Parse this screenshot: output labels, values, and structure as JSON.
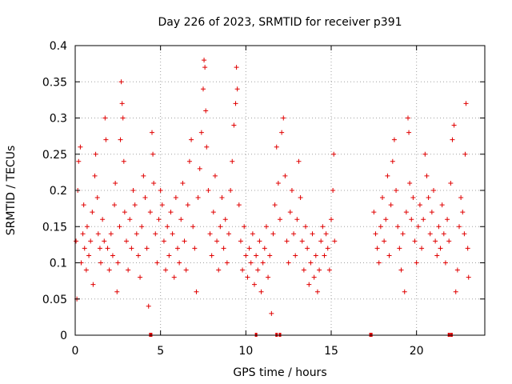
{
  "chart_data": {
    "type": "scatter",
    "title": "Day 226 of 2023, SRMTID for receiver p391",
    "xlabel": "GPS time / hours",
    "ylabel": "SRMTID / TECUs",
    "xlim": [
      0,
      24
    ],
    "ylim": [
      0,
      0.4
    ],
    "x_ticks": [
      0,
      5,
      10,
      15,
      20
    ],
    "x_tick_labels": [
      "0",
      "5",
      "10",
      "15",
      "20"
    ],
    "y_ticks": [
      0,
      0.05,
      0.1,
      0.15,
      0.2,
      0.25,
      0.3,
      0.35,
      0.4
    ],
    "y_tick_labels": [
      "0",
      "0.05",
      "0.1",
      "0.15",
      "0.2",
      "0.25",
      "0.3",
      "0.35",
      "0.4"
    ],
    "grid": true,
    "series": [
      {
        "name": "SRMTID",
        "color": "#e00000",
        "marker": "plus",
        "points": [
          [
            0.05,
            0.13
          ],
          [
            0.1,
            0.05
          ],
          [
            0.15,
            0.2
          ],
          [
            0.2,
            0.24
          ],
          [
            0.3,
            0.26
          ],
          [
            0.35,
            0.1
          ],
          [
            0.45,
            0.14
          ],
          [
            0.5,
            0.18
          ],
          [
            0.55,
            0.12
          ],
          [
            0.65,
            0.09
          ],
          [
            0.7,
            0.15
          ],
          [
            0.8,
            0.11
          ],
          [
            0.9,
            0.13
          ],
          [
            1.0,
            0.17
          ],
          [
            1.05,
            0.07
          ],
          [
            1.15,
            0.22
          ],
          [
            1.2,
            0.25
          ],
          [
            1.3,
            0.19
          ],
          [
            1.35,
            0.14
          ],
          [
            1.45,
            0.12
          ],
          [
            1.5,
            0.1
          ],
          [
            1.6,
            0.16
          ],
          [
            1.7,
            0.13
          ],
          [
            1.75,
            0.3
          ],
          [
            1.8,
            0.27
          ],
          [
            1.9,
            0.12
          ],
          [
            2.0,
            0.09
          ],
          [
            2.1,
            0.14
          ],
          [
            2.2,
            0.11
          ],
          [
            2.3,
            0.18
          ],
          [
            2.35,
            0.21
          ],
          [
            2.45,
            0.06
          ],
          [
            2.5,
            0.1
          ],
          [
            2.6,
            0.15
          ],
          [
            2.65,
            0.27
          ],
          [
            2.7,
            0.35
          ],
          [
            2.75,
            0.32
          ],
          [
            2.8,
            0.3
          ],
          [
            2.85,
            0.24
          ],
          [
            2.9,
            0.17
          ],
          [
            3.0,
            0.13
          ],
          [
            3.1,
            0.09
          ],
          [
            3.2,
            0.16
          ],
          [
            3.3,
            0.12
          ],
          [
            3.4,
            0.2
          ],
          [
            3.5,
            0.18
          ],
          [
            3.6,
            0.14
          ],
          [
            3.7,
            0.11
          ],
          [
            3.8,
            0.08
          ],
          [
            3.9,
            0.15
          ],
          [
            4.0,
            0.22
          ],
          [
            4.1,
            0.19
          ],
          [
            4.2,
            0.12
          ],
          [
            4.3,
            0.04
          ],
          [
            4.4,
            0.17
          ],
          [
            4.5,
            0.28
          ],
          [
            4.55,
            0.25
          ],
          [
            4.6,
            0.21
          ],
          [
            4.7,
            0.14
          ],
          [
            4.8,
            0.1
          ],
          [
            4.9,
            0.16
          ],
          [
            5.0,
            0.2
          ],
          [
            5.1,
            0.18
          ],
          [
            5.2,
            0.13
          ],
          [
            5.3,
            0.09
          ],
          [
            5.4,
            0.15
          ],
          [
            5.5,
            0.11
          ],
          [
            5.6,
            0.17
          ],
          [
            5.7,
            0.14
          ],
          [
            5.8,
            0.08
          ],
          [
            5.9,
            0.19
          ],
          [
            6.0,
            0.12
          ],
          [
            6.1,
            0.1
          ],
          [
            6.2,
            0.16
          ],
          [
            6.3,
            0.21
          ],
          [
            6.4,
            0.13
          ],
          [
            6.5,
            0.09
          ],
          [
            6.6,
            0.18
          ],
          [
            6.7,
            0.24
          ],
          [
            6.8,
            0.27
          ],
          [
            6.9,
            0.15
          ],
          [
            7.0,
            0.12
          ],
          [
            7.1,
            0.06
          ],
          [
            7.2,
            0.19
          ],
          [
            7.3,
            0.23
          ],
          [
            7.4,
            0.28
          ],
          [
            7.5,
            0.34
          ],
          [
            7.55,
            0.38
          ],
          [
            7.6,
            0.37
          ],
          [
            7.65,
            0.31
          ],
          [
            7.7,
            0.26
          ],
          [
            7.8,
            0.2
          ],
          [
            7.9,
            0.14
          ],
          [
            8.0,
            0.11
          ],
          [
            8.1,
            0.17
          ],
          [
            8.2,
            0.22
          ],
          [
            8.3,
            0.13
          ],
          [
            8.4,
            0.09
          ],
          [
            8.5,
            0.15
          ],
          [
            8.6,
            0.19
          ],
          [
            8.7,
            0.12
          ],
          [
            8.8,
            0.16
          ],
          [
            8.9,
            0.1
          ],
          [
            9.0,
            0.14
          ],
          [
            9.1,
            0.2
          ],
          [
            9.2,
            0.24
          ],
          [
            9.3,
            0.29
          ],
          [
            9.4,
            0.32
          ],
          [
            9.45,
            0.37
          ],
          [
            9.5,
            0.34
          ],
          [
            9.6,
            0.18
          ],
          [
            9.7,
            0.13
          ],
          [
            9.8,
            0.09
          ],
          [
            9.9,
            0.15
          ],
          [
            10.0,
            0.11
          ],
          [
            10.1,
            0.08
          ],
          [
            10.2,
            0.12
          ],
          [
            10.3,
            0.1
          ],
          [
            10.4,
            0.14
          ],
          [
            10.5,
            0.07
          ],
          [
            10.6,
            0.11
          ],
          [
            10.7,
            0.09
          ],
          [
            10.8,
            0.13
          ],
          [
            10.9,
            0.06
          ],
          [
            11.0,
            0.1
          ],
          [
            11.1,
            0.12
          ],
          [
            11.2,
            0.15
          ],
          [
            11.3,
            0.08
          ],
          [
            11.4,
            0.11
          ],
          [
            11.5,
            0.03
          ],
          [
            11.6,
            0.14
          ],
          [
            11.7,
            0.18
          ],
          [
            11.8,
            0.26
          ],
          [
            11.9,
            0.21
          ],
          [
            12.0,
            0.16
          ],
          [
            12.1,
            0.28
          ],
          [
            12.2,
            0.3
          ],
          [
            12.3,
            0.22
          ],
          [
            12.4,
            0.13
          ],
          [
            12.5,
            0.1
          ],
          [
            12.6,
            0.17
          ],
          [
            12.7,
            0.2
          ],
          [
            12.8,
            0.14
          ],
          [
            12.9,
            0.11
          ],
          [
            13.0,
            0.16
          ],
          [
            13.1,
            0.24
          ],
          [
            13.2,
            0.19
          ],
          [
            13.3,
            0.13
          ],
          [
            13.4,
            0.09
          ],
          [
            13.5,
            0.15
          ],
          [
            13.6,
            0.12
          ],
          [
            13.7,
            0.07
          ],
          [
            13.8,
            0.1
          ],
          [
            13.9,
            0.14
          ],
          [
            14.0,
            0.08
          ],
          [
            14.1,
            0.11
          ],
          [
            14.2,
            0.06
          ],
          [
            14.3,
            0.09
          ],
          [
            14.4,
            0.13
          ],
          [
            14.5,
            0.15
          ],
          [
            14.6,
            0.11
          ],
          [
            14.7,
            0.14
          ],
          [
            14.8,
            0.12
          ],
          [
            14.9,
            0.09
          ],
          [
            15.0,
            0.16
          ],
          [
            15.1,
            0.2
          ],
          [
            15.15,
            0.25
          ],
          [
            15.2,
            0.13
          ],
          [
            17.5,
            0.17
          ],
          [
            17.6,
            0.14
          ],
          [
            17.7,
            0.12
          ],
          [
            17.8,
            0.1
          ],
          [
            17.9,
            0.15
          ],
          [
            18.0,
            0.19
          ],
          [
            18.1,
            0.13
          ],
          [
            18.2,
            0.16
          ],
          [
            18.3,
            0.22
          ],
          [
            18.4,
            0.11
          ],
          [
            18.5,
            0.18
          ],
          [
            18.6,
            0.24
          ],
          [
            18.7,
            0.27
          ],
          [
            18.8,
            0.2
          ],
          [
            18.9,
            0.15
          ],
          [
            19.0,
            0.12
          ],
          [
            19.1,
            0.09
          ],
          [
            19.2,
            0.14
          ],
          [
            19.3,
            0.06
          ],
          [
            19.4,
            0.17
          ],
          [
            19.5,
            0.3
          ],
          [
            19.55,
            0.28
          ],
          [
            19.6,
            0.21
          ],
          [
            19.7,
            0.16
          ],
          [
            19.8,
            0.19
          ],
          [
            19.9,
            0.13
          ],
          [
            20.0,
            0.1
          ],
          [
            20.1,
            0.15
          ],
          [
            20.2,
            0.18
          ],
          [
            20.3,
            0.12
          ],
          [
            20.4,
            0.16
          ],
          [
            20.5,
            0.25
          ],
          [
            20.6,
            0.22
          ],
          [
            20.7,
            0.19
          ],
          [
            20.8,
            0.14
          ],
          [
            20.9,
            0.17
          ],
          [
            21.0,
            0.2
          ],
          [
            21.1,
            0.13
          ],
          [
            21.2,
            0.11
          ],
          [
            21.3,
            0.15
          ],
          [
            21.4,
            0.12
          ],
          [
            21.5,
            0.18
          ],
          [
            21.6,
            0.14
          ],
          [
            21.7,
            0.1
          ],
          [
            21.8,
            0.16
          ],
          [
            21.9,
            0.13
          ],
          [
            22.0,
            0.21
          ],
          [
            22.1,
            0.27
          ],
          [
            22.2,
            0.29
          ],
          [
            22.3,
            0.06
          ],
          [
            22.4,
            0.09
          ],
          [
            22.5,
            0.15
          ],
          [
            22.6,
            0.19
          ],
          [
            22.7,
            0.17
          ],
          [
            22.8,
            0.14
          ],
          [
            22.85,
            0.25
          ],
          [
            22.9,
            0.32
          ],
          [
            23.0,
            0.12
          ],
          [
            23.05,
            0.08
          ]
        ]
      }
    ],
    "zero_markers_x": [
      4.4,
      4.45,
      10.6,
      11.8,
      12.0,
      17.3,
      17.35,
      21.9,
      22.05
    ]
  }
}
